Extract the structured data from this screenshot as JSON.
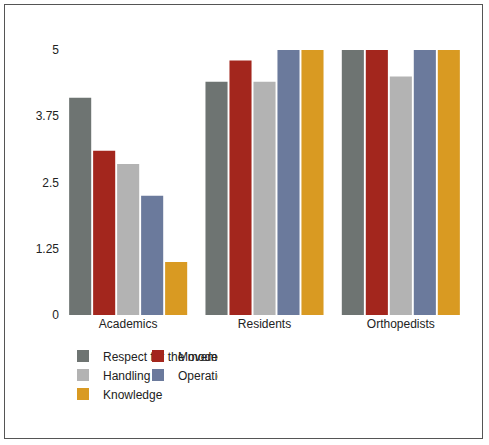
{
  "chart_data": {
    "type": "bar",
    "categories": [
      "Academics",
      "Residents",
      "Orthopedists"
    ],
    "series": [
      {
        "name": "Respect for the model",
        "color": "#6e7472",
        "values": [
          4.1,
          4.4,
          5
        ]
      },
      {
        "name": "Movement time",
        "color": "#a3261d",
        "values": [
          3.1,
          4.8,
          5
        ]
      },
      {
        "name": "Handling",
        "color": "#b3b3b3",
        "values": [
          2.85,
          4.4,
          4.5
        ]
      },
      {
        "name": "Operation flow",
        "color": "#6b7a9c",
        "values": [
          2.25,
          5,
          5
        ]
      },
      {
        "name": "Knowledge",
        "color": "#d99a22",
        "values": [
          1,
          5,
          5
        ]
      }
    ],
    "ylim": [
      0,
      5
    ],
    "yticks": [
      0,
      1.25,
      2.5,
      3.75,
      5
    ],
    "grid": false,
    "legend": "bottom"
  }
}
